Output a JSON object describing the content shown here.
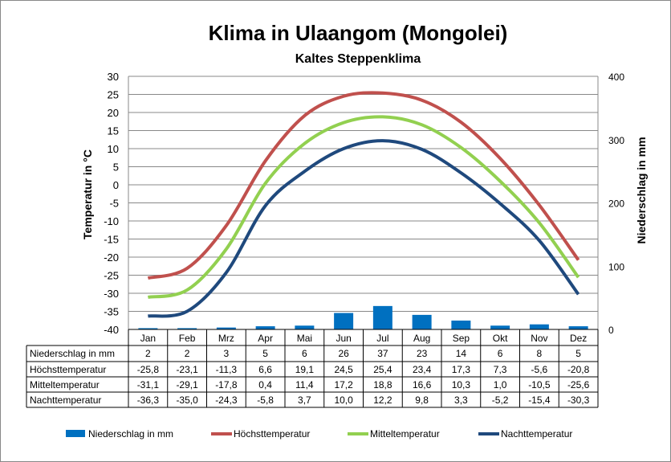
{
  "chart_data": {
    "type": "line",
    "title": "Klima in Ulaangom (Mongolei)",
    "subtitle": "Kaltes Steppenklima",
    "ylabel": "Temperatur in °C",
    "y2label": "Niederschlag in mm",
    "ylim": [
      -40,
      30
    ],
    "y2lim": [
      0,
      400
    ],
    "yticks": [
      "30",
      "25",
      "20",
      "15",
      "10",
      "5",
      "0",
      "-5",
      "-10",
      "-15",
      "-20",
      "-25",
      "-30",
      "-35",
      "-40"
    ],
    "y2ticks": [
      "400",
      "300",
      "200",
      "100",
      "0"
    ],
    "categories": [
      "Jan",
      "Feb",
      "Mrz",
      "Apr",
      "Mai",
      "Jun",
      "Jul",
      "Aug",
      "Sep",
      "Okt",
      "Nov",
      "Dez"
    ],
    "grid": true,
    "legend": "bottom",
    "series": [
      {
        "name": "Niederschlag in mm",
        "type": "bar",
        "axis": "right",
        "color": "#0070c0",
        "values": [
          2,
          2,
          3,
          5,
          6,
          26,
          37,
          23,
          14,
          6,
          8,
          5
        ],
        "labels": [
          "2",
          "2",
          "3",
          "5",
          "6",
          "26",
          "37",
          "23",
          "14",
          "6",
          "8",
          "5"
        ]
      },
      {
        "name": "Höchsttemperatur",
        "type": "line",
        "color": "#c0504d",
        "values": [
          -25.8,
          -23.1,
          -11.3,
          6.6,
          19.1,
          24.5,
          25.4,
          23.4,
          17.3,
          7.3,
          -5.6,
          -20.8
        ],
        "labels": [
          "-25,8",
          "-23,1",
          "-11,3",
          "6,6",
          "19,1",
          "24,5",
          "25,4",
          "23,4",
          "17,3",
          "7,3",
          "-5,6",
          "-20,8"
        ]
      },
      {
        "name": "Mitteltemperatur",
        "type": "line",
        "color": "#92d050",
        "values": [
          -31.1,
          -29.1,
          -17.8,
          0.4,
          11.4,
          17.2,
          18.8,
          16.6,
          10.3,
          1.0,
          -10.5,
          -25.6
        ],
        "labels": [
          "-31,1",
          "-29,1",
          "-17,8",
          "0,4",
          "11,4",
          "17,2",
          "18,8",
          "16,6",
          "10,3",
          "1,0",
          "-10,5",
          "-25,6"
        ]
      },
      {
        "name": "Nachttemperatur",
        "type": "line",
        "color": "#1f497d",
        "values": [
          -36.3,
          -35.0,
          -24.3,
          -5.8,
          3.7,
          10.0,
          12.2,
          9.8,
          3.3,
          -5.2,
          -15.4,
          -30.3
        ],
        "labels": [
          "-36,3",
          "-35,0",
          "-24,3",
          "-5,8",
          "3,7",
          "10,0",
          "12,2",
          "9,8",
          "3,3",
          "-5,2",
          "-15,4",
          "-30,3"
        ]
      }
    ]
  }
}
